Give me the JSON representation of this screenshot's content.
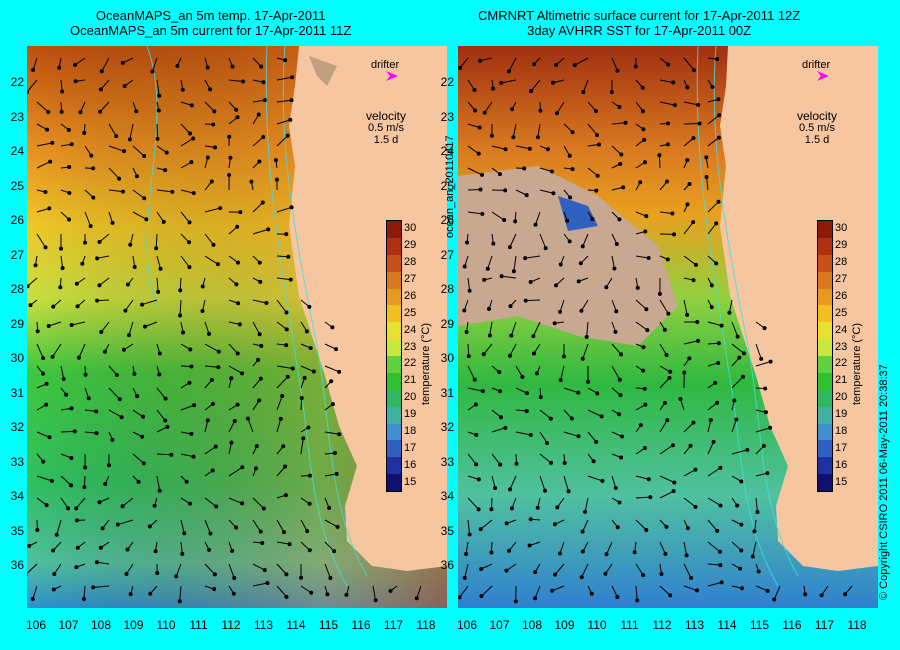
{
  "left": {
    "title_line1": "OceanMAPS_an 5m temp. 17-Apr-2011",
    "title_line2": "OceanMAPS_an 5m current for 17-Apr-2011 11Z"
  },
  "right": {
    "title_line1": "CMRNRT Altimetric surface current for 17-Apr-2011 12Z",
    "title_line2": "3day AVHRR SST for 17-Apr-2011 00Z"
  },
  "legend": {
    "drifter": "drifter",
    "velocity": "velocity",
    "velocity_scale": "0.5 m/s",
    "time_scale": "1.5 d"
  },
  "colorbar": {
    "title": "temperature (°C)",
    "ticks": [
      "30",
      "29",
      "28",
      "27",
      "26",
      "25",
      "24",
      "23",
      "22",
      "21",
      "20",
      "19",
      "18",
      "17",
      "16",
      "15"
    ],
    "colors": [
      "#8b1a0a",
      "#b03010",
      "#c8501a",
      "#d87820",
      "#e89a20",
      "#f0c020",
      "#e8e030",
      "#c8e840",
      "#60d040",
      "#30c030",
      "#30b860",
      "#40b0a0",
      "#4090d0",
      "#3060c0",
      "#2030a0",
      "#101070"
    ]
  },
  "y_axis": [
    "22",
    "23",
    "24",
    "25",
    "26",
    "27",
    "28",
    "29",
    "30",
    "31",
    "32",
    "33",
    "34",
    "35",
    "36"
  ],
  "x_axis": [
    "106",
    "107",
    "108",
    "109",
    "110",
    "111",
    "112",
    "113",
    "114",
    "115",
    "116",
    "117",
    "118"
  ],
  "side_label": "ocean_an_20110417",
  "copyright": "© Copyright CSIRO 2011  06-May-2011 20:38:37",
  "colors": {
    "background": "#00ffff",
    "land": "#f5c6a0",
    "drifter": "#ff00ff",
    "contour": "#40e0e0"
  }
}
